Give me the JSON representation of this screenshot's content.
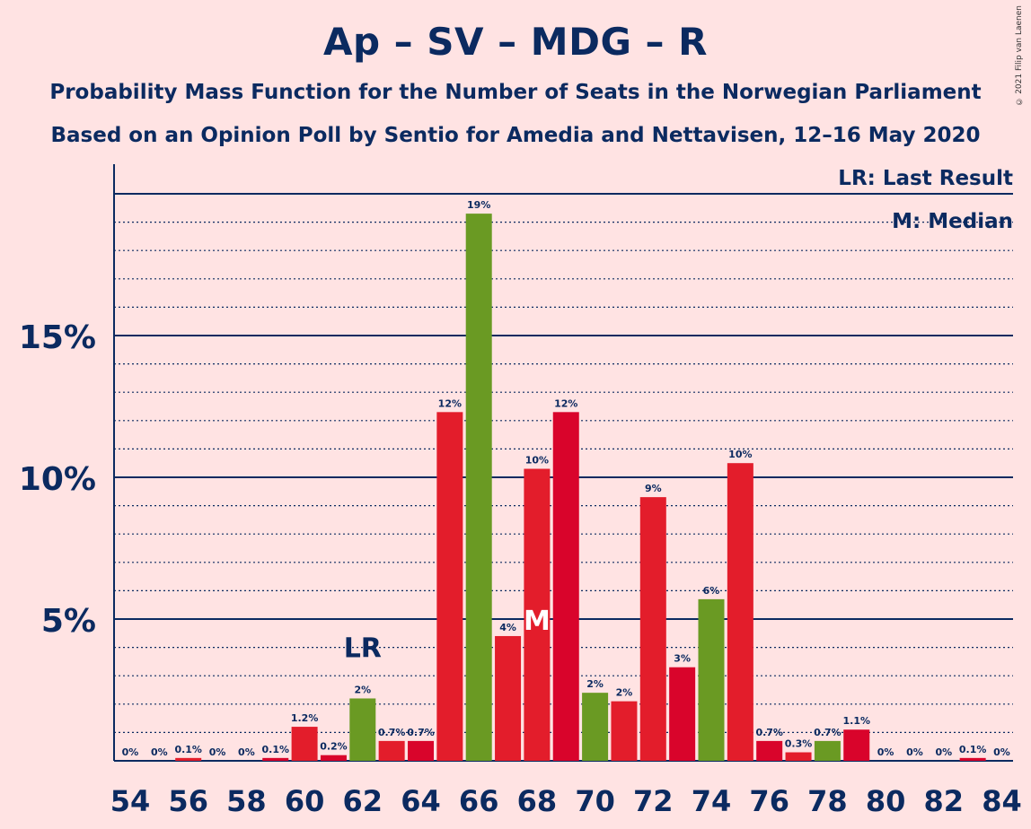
{
  "title": "Ap – SV – MDG – R",
  "subtitle_1": "Probability Mass Function for the Number of Seats in the Norwegian Parliament",
  "subtitle_2": "Based on an Opinion Poll by Sentio for Amedia and Nettavisen, 12–16 May 2020",
  "copyright": "© 2021 Filip van Laenen",
  "legend": {
    "last_result": "LR: Last Result",
    "median": "M: Median"
  },
  "markers": {
    "last_result_label": "LR",
    "last_result_seat": 62,
    "median_label": "M",
    "median_seat": 68
  },
  "colors": {
    "background": "#ffe3e3",
    "text": "#0b2a60",
    "red_dark": "#d9042b",
    "red": "#e31d2b",
    "green": "#6a9a23"
  },
  "chart_data": {
    "type": "bar",
    "x": [
      54,
      55,
      56,
      57,
      58,
      59,
      60,
      61,
      62,
      63,
      64,
      65,
      66,
      67,
      68,
      69,
      70,
      71,
      72,
      73,
      74,
      75,
      76,
      77,
      78,
      79,
      80,
      81,
      82,
      83,
      84
    ],
    "values": [
      0,
      0,
      0.1,
      0,
      0,
      0.1,
      1.2,
      0.2,
      2.2,
      0.7,
      0.7,
      12.3,
      19.3,
      4.4,
      10.3,
      12.3,
      2.4,
      2.1,
      9.3,
      3.3,
      5.7,
      10.5,
      0.7,
      0.3,
      0.7,
      1.1,
      0,
      0,
      0,
      0.1,
      0
    ],
    "value_labels": [
      "0%",
      "0%",
      "0.1%",
      "0%",
      "0%",
      "0.1%",
      "1.2%",
      "0.2%",
      "2%",
      "0.7%",
      "0.7%",
      "12%",
      "19%",
      "4%",
      "10%",
      "12%",
      "2%",
      "2%",
      "9%",
      "3%",
      "6%",
      "10%",
      "0.7%",
      "0.3%",
      "0.7%",
      "1.1%",
      "0%",
      "0%",
      "0%",
      "0.1%",
      "0%"
    ],
    "bar_colors": [
      "red_dark",
      "red_dark",
      "red",
      "red_dark",
      "red",
      "red_dark",
      "red",
      "red_dark",
      "green",
      "red",
      "red_dark",
      "red",
      "green",
      "red",
      "red",
      "red_dark",
      "green",
      "red",
      "red",
      "red_dark",
      "green",
      "red",
      "red_dark",
      "red",
      "green",
      "red_dark",
      "red",
      "red_dark",
      "red",
      "red_dark",
      "red"
    ],
    "x_ticks": [
      54,
      56,
      58,
      60,
      62,
      64,
      66,
      68,
      70,
      72,
      74,
      76,
      78,
      80,
      82,
      84
    ],
    "y_ticks": [
      5,
      10,
      15
    ],
    "y_tick_labels": [
      "5%",
      "10%",
      "15%"
    ],
    "ylim": [
      0,
      21
    ],
    "xlabel": "",
    "ylabel": "",
    "grid": "dotted minor lines every 1%, solid major lines every 5%",
    "legend_position": "top-right"
  }
}
